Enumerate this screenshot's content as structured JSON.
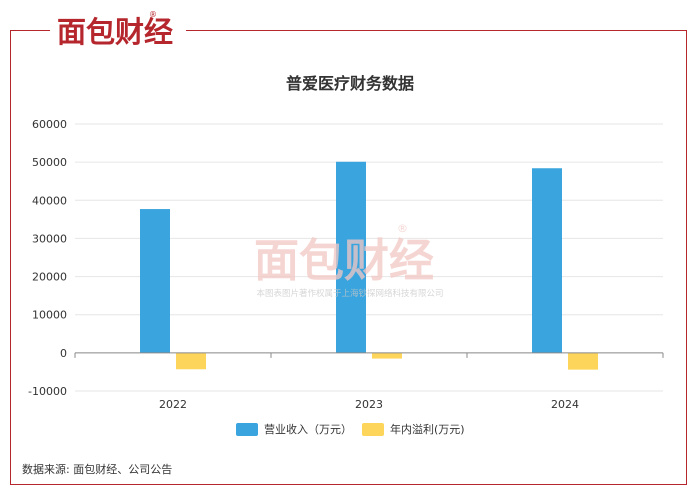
{
  "brand": {
    "logo_text": "面包财经",
    "registered_mark": "®",
    "color": "#b5272d"
  },
  "watermark": {
    "logo_text": "面包财经",
    "registered_mark": "®",
    "caption": "本图表图片著作权属于上海钞探网络科技有限公司"
  },
  "source_text": "数据来源: 面包财经、公司公告",
  "chart_data": {
    "type": "bar",
    "title": "普爱医疗财务数据",
    "categories": [
      "2022",
      "2023",
      "2024"
    ],
    "series": [
      {
        "name": "营业收入（万元）",
        "color": "#3aa4de",
        "values": [
          37700,
          50100,
          48400
        ]
      },
      {
        "name": "年内溢利(万元)",
        "color": "#fdd55a",
        "values": [
          -4300,
          -1500,
          -4400
        ]
      }
    ],
    "yticks": [
      60000,
      50000,
      40000,
      30000,
      20000,
      10000,
      0,
      -10000
    ],
    "ylim": [
      -10000,
      60000
    ],
    "grid": true,
    "legend": "bottom"
  }
}
